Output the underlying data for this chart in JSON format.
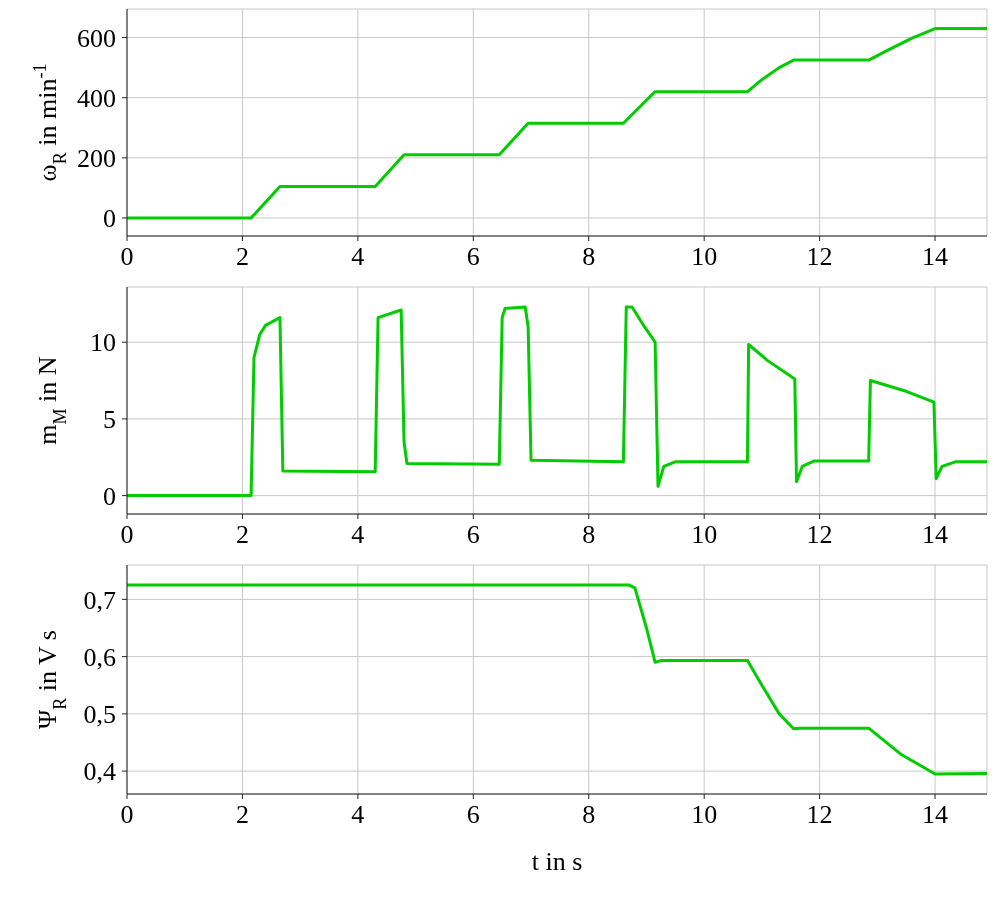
{
  "chart_data": [
    {
      "type": "line",
      "ylabel": "ω$_{R}$ in min$^{-1}$",
      "xlim": [
        0,
        14.9
      ],
      "xticks": [
        0,
        2,
        4,
        6,
        8,
        10,
        12,
        14
      ],
      "ylim": [
        -60,
        695
      ],
      "yticks": [
        0,
        200,
        400,
        600
      ],
      "grid": true,
      "legend": false,
      "marker": "none",
      "line_style": "solid",
      "x": [
        0,
        2.15,
        2.65,
        4.3,
        4.8,
        6.45,
        6.95,
        8.6,
        9.15,
        10.75,
        11.0,
        11.3,
        11.55,
        12.85,
        13.2,
        13.6,
        14.0,
        14.9
      ],
      "series": [
        {
          "color": "#00cc00",
          "values": [
            0,
            0,
            105,
            105,
            210,
            210,
            315,
            315,
            420,
            420,
            460,
            500,
            525,
            525,
            560,
            598,
            630,
            630
          ]
        }
      ]
    },
    {
      "type": "line",
      "ylabel": "m$_{M}$ in N",
      "xlim": [
        0,
        14.9
      ],
      "xticks": [
        0,
        2,
        4,
        6,
        8,
        10,
        12,
        14
      ],
      "ylim": [
        -1.2,
        13.6
      ],
      "yticks": [
        0,
        5,
        10
      ],
      "grid": true,
      "legend": false,
      "marker": "none",
      "line_style": "solid",
      "x": [
        0,
        2.15,
        2.2,
        2.3,
        2.4,
        2.65,
        2.7,
        4.3,
        4.35,
        4.75,
        4.8,
        4.85,
        6.45,
        6.5,
        6.55,
        6.9,
        6.95,
        7.0,
        8.6,
        8.65,
        8.75,
        8.95,
        9.15,
        9.2,
        9.3,
        9.5,
        10.75,
        10.77,
        11.1,
        11.57,
        11.6,
        11.7,
        11.9,
        12.85,
        12.88,
        13.5,
        13.98,
        14.02,
        14.12,
        14.35,
        14.9
      ],
      "series": [
        {
          "color": "#00cc00",
          "values": [
            0,
            0,
            9,
            10.5,
            11.1,
            11.6,
            1.6,
            1.55,
            11.6,
            12.1,
            3.5,
            2.1,
            2.05,
            11.6,
            12.2,
            12.3,
            11.0,
            2.3,
            2.2,
            12.3,
            12.3,
            11.1,
            10.0,
            0.6,
            1.9,
            2.2,
            2.2,
            9.85,
            8.8,
            7.6,
            0.9,
            1.9,
            2.25,
            2.25,
            7.5,
            6.8,
            6.1,
            1.1,
            1.9,
            2.2,
            2.2
          ]
        }
      ]
    },
    {
      "type": "line",
      "ylabel": "Ψ$_{R}$ in V s",
      "xlabel": "t in s",
      "xlim": [
        0,
        14.9
      ],
      "xticks": [
        0,
        2,
        4,
        6,
        8,
        10,
        12,
        14
      ],
      "ylim": [
        0.36,
        0.76
      ],
      "yticks": [
        {
          "value": 0.4,
          "label": "0,4"
        },
        {
          "value": 0.5,
          "label": "0,5"
        },
        {
          "value": 0.6,
          "label": "0,6"
        },
        {
          "value": 0.7,
          "label": "0,7"
        }
      ],
      "grid": true,
      "legend": false,
      "marker": "none",
      "line_style": "solid",
      "x": [
        0,
        8.7,
        8.8,
        9.0,
        9.15,
        9.25,
        10.75,
        11.0,
        11.3,
        11.55,
        11.65,
        12.85,
        13.4,
        14.0,
        14.9
      ],
      "series": [
        {
          "color": "#00cc00",
          "values": [
            0.725,
            0.725,
            0.72,
            0.65,
            0.59,
            0.593,
            0.593,
            0.55,
            0.5,
            0.474,
            0.475,
            0.475,
            0.43,
            0.395,
            0.396
          ]
        }
      ]
    }
  ]
}
